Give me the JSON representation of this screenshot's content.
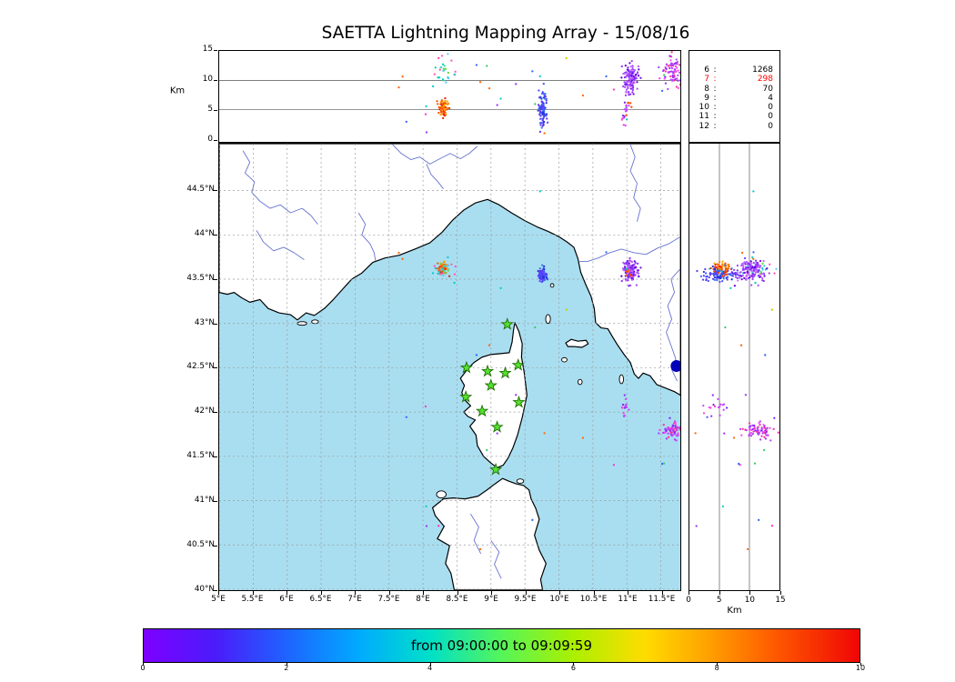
{
  "title": "SAETTA Lightning Mapping Array - 15/08/16",
  "top_panel": {
    "km_label": "Km",
    "alt_ticks": [
      0,
      5,
      10,
      15
    ],
    "alt_tick_labels": [
      "0",
      "5",
      "10",
      "15"
    ]
  },
  "right_panel": {
    "km_label": "Km",
    "alt_ticks": [
      0,
      5,
      10,
      15
    ],
    "alt_tick_labels": [
      "0",
      "5",
      "10",
      "15"
    ]
  },
  "map": {
    "lon_ticks": [
      5,
      5.5,
      6,
      6.5,
      7,
      7.5,
      8,
      8.5,
      9,
      9.5,
      10,
      10.5,
      11,
      11.5
    ],
    "lon_tick_labels": [
      "5°E",
      "5.5°E",
      "6°E",
      "6.5°E",
      "7°E",
      "7.5°E",
      "8°E",
      "8.5°E",
      "9°E",
      "9.5°E",
      "10°E",
      "10.5°E",
      "11°E",
      "11.5°E"
    ],
    "lat_ticks": [
      44.5,
      44,
      43.5,
      43,
      42.5,
      42,
      41.5,
      41,
      40.5,
      40
    ],
    "lat_tick_labels": [
      "44.5°N",
      "44°N",
      "43.5°N",
      "43°N",
      "42.5°N",
      "42°N",
      "41.5°N",
      "41°N",
      "40.5°N",
      "40°N"
    ]
  },
  "colorbar": {
    "label": "from 09:00:00 to 09:09:59",
    "ticks": [
      0,
      2,
      4,
      6,
      8,
      10
    ],
    "tick_labels": [
      "0",
      "2",
      "4",
      "6",
      "8",
      "10"
    ],
    "gradient_stops": [
      "#7d00ff 0%",
      "#4b1bfa 10%",
      "#1e64ff 20%",
      "#00aaff 30%",
      "#00e0c8 40%",
      "#55f55a 50%",
      "#aaf000 60%",
      "#ffdc00 70%",
      "#ffa000 79%",
      "#ff5a00 88%",
      "#f00505 100%"
    ]
  },
  "colors": {
    "sea": "#a9def0",
    "land": "#ffffff",
    "coast": "#000000",
    "river": "#6673cf",
    "grid": "#999999",
    "star_fill": "#55e030",
    "star_edge": "#1c6e00"
  },
  "chart_data": {
    "type": "scatter",
    "title": "SAETTA Lightning Mapping Array - 15/08/16",
    "time_window": {
      "start": "09:00:00",
      "end": "09:09:59",
      "scale_minutes": [
        0,
        10
      ]
    },
    "panels": [
      {
        "name": "altitude-vs-longitude",
        "x": "longitude_deg_E",
        "x_range": [
          5,
          11.79
        ],
        "y": "altitude_km",
        "y_range": [
          0,
          15
        ],
        "gridlines_km": [
          5,
          10
        ]
      },
      {
        "name": "map-latitude-vs-longitude",
        "x": "longitude_deg_E",
        "x_range": [
          5,
          11.79
        ],
        "y": "latitude_deg_N",
        "y_range": [
          39.99,
          45.03
        ],
        "grid": "0.5deg dashed"
      },
      {
        "name": "altitude-vs-latitude",
        "x": "altitude_km",
        "x_range": [
          0,
          15
        ],
        "y": "latitude_deg_N",
        "y_range": [
          39.99,
          45.03
        ],
        "gridlines_km": [
          5,
          10
        ]
      }
    ],
    "legend_rows": [
      {
        "stations": "6",
        "count": "1268",
        "color": "#000000"
      },
      {
        "stations": "7",
        "count": "298",
        "color": "#ff0000"
      },
      {
        "stations": "8",
        "count": "70",
        "color": "#000000"
      },
      {
        "stations": "9",
        "count": "4",
        "color": "#000000"
      },
      {
        "stations": "10",
        "count": "0",
        "color": "#000000"
      },
      {
        "stations": "11",
        "count": "0",
        "color": "#000000"
      },
      {
        "stations": "12",
        "count": "0",
        "color": "#000000"
      }
    ],
    "stations": [
      [
        9.24,
        42.99
      ],
      [
        8.64,
        42.5
      ],
      [
        8.95,
        42.46
      ],
      [
        9.21,
        42.44
      ],
      [
        9.4,
        42.53
      ],
      [
        9.0,
        42.3
      ],
      [
        8.63,
        42.17
      ],
      [
        9.41,
        42.11
      ],
      [
        8.87,
        42.01
      ],
      [
        9.09,
        41.83
      ],
      [
        9.07,
        41.35
      ]
    ],
    "clusters": [
      {
        "name": "west-cell-low",
        "lon": 8.3,
        "lat": 43.62,
        "alt": 5.5,
        "sd_lon": 0.035,
        "sd_lat": 0.03,
        "sd_alt": 0.7,
        "count": 70,
        "palette": [
          "#ee2200",
          "#ff5500",
          "#ff8800",
          "#dd3300",
          "#ffaa00"
        ]
      },
      {
        "name": "west-cell-high",
        "lon": 8.32,
        "lat": 43.6,
        "alt": 11.5,
        "sd_lon": 0.1,
        "sd_lat": 0.07,
        "sd_alt": 1.6,
        "count": 26,
        "palette": [
          "#00cccc",
          "#33ddaa",
          "#55ccff",
          "#66dd44",
          "#ff55bb"
        ]
      },
      {
        "name": "mid-cell",
        "lon": 9.76,
        "lat": 43.55,
        "alt": 5.0,
        "sd_lon": 0.03,
        "sd_lat": 0.035,
        "sd_alt": 1.7,
        "count": 95,
        "palette": [
          "#2233dd",
          "#4455ff",
          "#3377ee",
          "#5544ff",
          "#6633ee"
        ]
      },
      {
        "name": "east-cell",
        "lon": 11.05,
        "lat": 43.6,
        "alt": 10.3,
        "sd_lon": 0.055,
        "sd_lat": 0.06,
        "sd_alt": 1.3,
        "count": 135,
        "palette": [
          "#7711ee",
          "#8833ff",
          "#9944ff",
          "#aa55ff",
          "#6600dd",
          "#cc66ff"
        ]
      },
      {
        "name": "east-cell-low",
        "lon": 11.04,
        "lat": 43.58,
        "alt": 5.2,
        "sd_lon": 0.03,
        "sd_lat": 0.04,
        "sd_alt": 0.9,
        "count": 8,
        "palette": [
          "#ff4400",
          "#ff7700",
          "#00ccbb"
        ]
      },
      {
        "name": "south-small-cell",
        "lon": 10.97,
        "lat": 42.05,
        "alt": 5.0,
        "sd_lon": 0.03,
        "sd_lat": 0.05,
        "sd_alt": 1.2,
        "count": 16,
        "palette": [
          "#9933ff",
          "#cc44ff",
          "#ff44dd",
          "#7722ee"
        ]
      },
      {
        "name": "southeast-cell",
        "lon": 11.66,
        "lat": 41.79,
        "alt": 11.3,
        "sd_lon": 0.07,
        "sd_lat": 0.05,
        "sd_alt": 1.3,
        "count": 70,
        "palette": [
          "#8822ff",
          "#9944ff",
          "#bb44ff",
          "#ff44ff",
          "#aa33ee",
          "#ff3399"
        ]
      }
    ],
    "extras": {
      "count": 24,
      "lon_range": [
        7.3,
        11.75
      ],
      "lat_range": [
        40.3,
        44.9
      ],
      "alt_range": [
        1,
        14.5
      ],
      "palette": [
        "#00cccc",
        "#ff33cc",
        "#33cc66",
        "#9933ff",
        "#ff6600",
        "#3366ff",
        "#cccc00"
      ]
    },
    "blob": {
      "lon": 11.73,
      "lat": 42.52,
      "radius_px": 6.5,
      "color": "#0000bb"
    }
  }
}
